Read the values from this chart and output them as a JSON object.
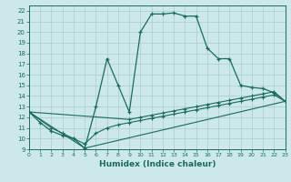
{
  "xlabel": "Humidex (Indice chaleur)",
  "xlim": [
    0,
    23
  ],
  "ylim": [
    9,
    22.5
  ],
  "xticks": [
    0,
    1,
    2,
    3,
    4,
    5,
    6,
    7,
    8,
    9,
    10,
    11,
    12,
    13,
    14,
    15,
    16,
    17,
    18,
    19,
    20,
    21,
    22,
    23
  ],
  "yticks": [
    9,
    10,
    11,
    12,
    13,
    14,
    15,
    16,
    17,
    18,
    19,
    20,
    21,
    22
  ],
  "bg_color": "#cce8e8",
  "line_color": "#1a6b5a",
  "grid_color": "#aacccc",
  "line1_x": [
    0,
    1,
    2,
    3,
    4,
    5,
    6,
    7,
    8,
    9,
    10,
    11,
    12,
    13,
    14,
    15,
    16,
    17,
    18,
    19,
    20,
    21,
    22,
    23
  ],
  "line1_y": [
    12.5,
    11.5,
    10.7,
    10.3,
    10.0,
    9.1,
    13.0,
    17.5,
    15.0,
    12.5,
    20.0,
    21.7,
    21.7,
    21.8,
    21.5,
    21.5,
    18.5,
    17.5,
    17.5,
    15.0,
    14.8,
    14.7,
    14.3,
    13.5
  ],
  "line2_x": [
    0,
    2,
    3,
    4,
    5,
    6,
    7,
    8,
    9,
    10,
    11,
    12,
    13,
    14,
    15,
    16,
    17,
    18,
    19,
    20,
    21,
    22,
    23
  ],
  "line2_y": [
    12.5,
    11.0,
    10.5,
    10.0,
    9.5,
    10.5,
    11.0,
    11.3,
    11.5,
    11.7,
    11.9,
    12.1,
    12.3,
    12.5,
    12.7,
    12.9,
    13.1,
    13.3,
    13.5,
    13.7,
    13.9,
    14.1,
    13.5
  ],
  "line3_x": [
    0,
    5,
    23
  ],
  "line3_y": [
    12.5,
    9.1,
    13.5
  ],
  "line4_x": [
    0,
    9,
    10,
    11,
    12,
    13,
    14,
    15,
    16,
    17,
    18,
    19,
    20,
    21,
    22,
    23
  ],
  "line4_y": [
    12.5,
    11.8,
    12.0,
    12.2,
    12.4,
    12.6,
    12.8,
    13.0,
    13.2,
    13.4,
    13.6,
    13.8,
    14.0,
    14.2,
    14.4,
    13.5
  ]
}
